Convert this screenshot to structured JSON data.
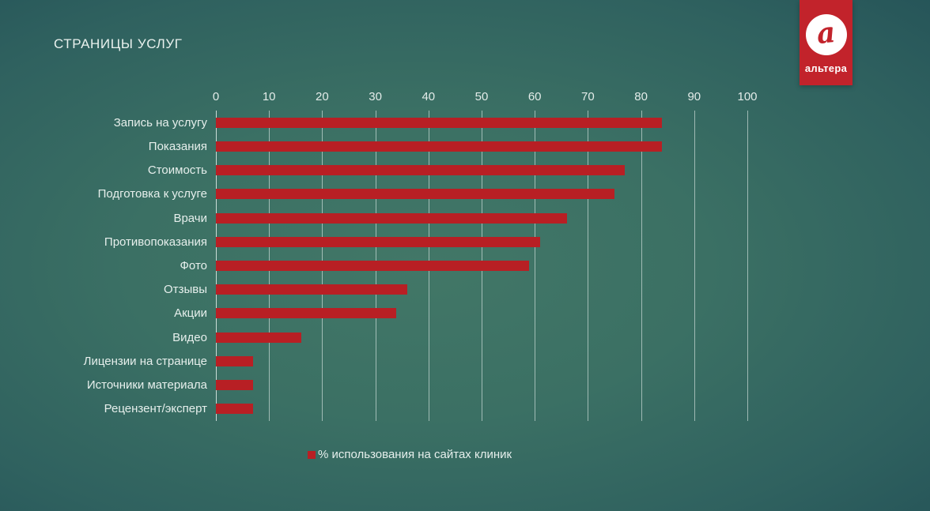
{
  "slide": {
    "title": "СТРАНИЦЫ УСЛУГ"
  },
  "logo": {
    "letter": "a",
    "name": "альтера",
    "badge_color": "#c2232b"
  },
  "chart_data": {
    "type": "bar",
    "orientation": "horizontal",
    "title": "СТРАНИЦЫ УСЛУГ",
    "categories": [
      "Запись на услугу",
      "Показания",
      "Стоимость",
      "Подготовка к услуге",
      "Врачи",
      "Противопоказания",
      "Фото",
      "Отзывы",
      "Акции",
      "Видео",
      "Лицензии на странице",
      "Источники материала",
      "Рецензент/эксперт"
    ],
    "values": [
      84,
      84,
      77,
      75,
      66,
      61,
      59,
      36,
      34,
      16,
      7,
      7,
      7
    ],
    "series_name": "% использования на сайтах клиник",
    "xlim": [
      0,
      100
    ],
    "x_ticks": [
      0,
      10,
      20,
      30,
      40,
      50,
      60,
      70,
      80,
      90,
      100
    ],
    "bar_color": "#b81f24",
    "grid": true,
    "legend_position": "bottom"
  },
  "colors": {
    "background_center": "#427767",
    "background_edge": "#153d4b",
    "text": "#e6efec",
    "gridline": "rgba(222,234,230,0.62)"
  }
}
